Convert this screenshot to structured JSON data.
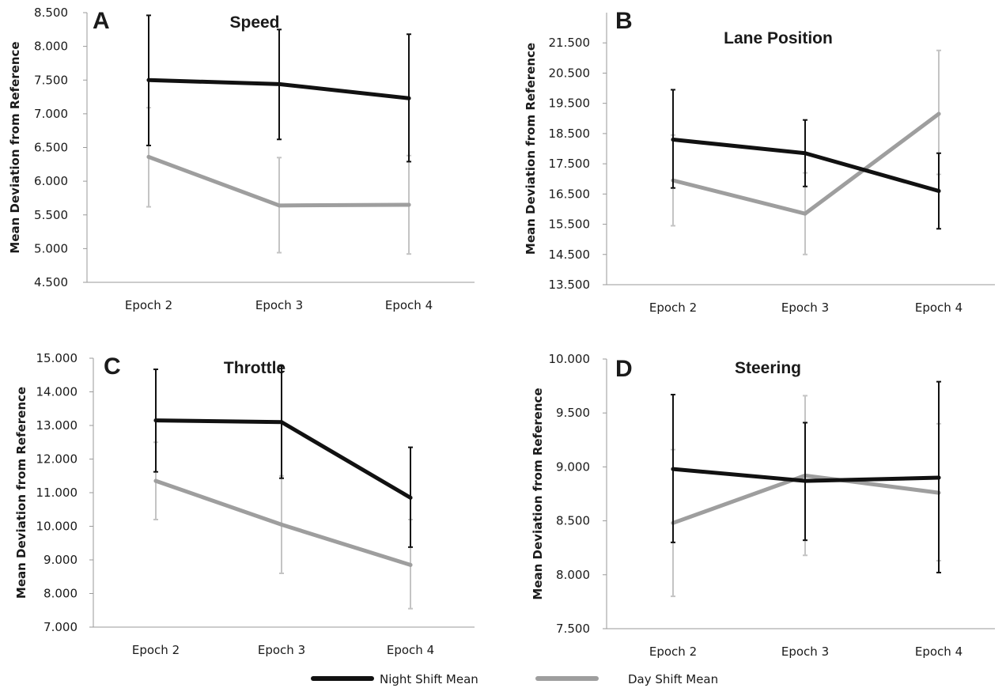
{
  "chart_data": [
    {
      "type": "line",
      "panel": "A",
      "title": "Speed",
      "ylabel": "Mean Deviation from Reference",
      "xlabel": "",
      "categories": [
        "Epoch 2",
        "Epoch 3",
        "Epoch 4"
      ],
      "ylim": [
        4.5,
        8.5
      ],
      "yticks": [
        "8.500",
        "8.000",
        "7.500",
        "7.000",
        "6.500",
        "6.000",
        "5.500",
        "5.000",
        "4.500"
      ],
      "grid": false,
      "series": [
        {
          "name": "Night Shift Mean",
          "color": "#111111",
          "values": [
            7.5,
            7.44,
            7.23
          ],
          "err_low": [
            6.53,
            6.62,
            6.29
          ],
          "err_high": [
            8.46,
            8.25,
            8.18
          ]
        },
        {
          "name": "Day Shift Mean",
          "color": "#9e9e9e",
          "values": [
            6.36,
            5.64,
            5.65
          ],
          "err_low": [
            5.62,
            4.94,
            4.92
          ],
          "err_high": [
            7.09,
            6.35,
            6.38
          ]
        }
      ]
    },
    {
      "type": "line",
      "panel": "B",
      "title": "Lane Position",
      "ylabel": "Mean Deviation from Reference",
      "xlabel": "",
      "categories": [
        "Epoch 2",
        "Epoch 3",
        "Epoch 4"
      ],
      "ylim": [
        13.5,
        22.5
      ],
      "yticks": [
        "21.500",
        "20.500",
        "19.500",
        "18.500",
        "17.500",
        "16.500",
        "15.500",
        "14.500",
        "13.500"
      ],
      "grid": false,
      "series": [
        {
          "name": "Night Shift Mean",
          "color": "#111111",
          "values": [
            18.3,
            17.85,
            16.6
          ],
          "err_low": [
            16.7,
            16.75,
            15.35
          ],
          "err_high": [
            19.95,
            18.95,
            17.85
          ]
        },
        {
          "name": "Day Shift Mean",
          "color": "#9e9e9e",
          "values": [
            16.95,
            15.85,
            19.15
          ],
          "err_low": [
            15.45,
            14.5,
            17.15
          ],
          "err_high": [
            18.45,
            17.2,
            21.25
          ]
        }
      ]
    },
    {
      "type": "line",
      "panel": "C",
      "title": "Throttle",
      "ylabel": "Mean Deviation from Reference",
      "xlabel": "",
      "categories": [
        "Epoch 2",
        "Epoch 3",
        "Epoch 4"
      ],
      "ylim": [
        7.0,
        15.0
      ],
      "yticks": [
        "15.000",
        "14.000",
        "13.000",
        "12.000",
        "11.000",
        "10.000",
        "9.000",
        "8.000",
        "7.000"
      ],
      "grid": false,
      "series": [
        {
          "name": "Night Shift Mean",
          "color": "#111111",
          "values": [
            13.15,
            13.1,
            10.85
          ],
          "err_low": [
            11.62,
            11.43,
            9.38
          ],
          "err_high": [
            14.67,
            14.77,
            12.35
          ]
        },
        {
          "name": "Day Shift Mean",
          "color": "#9e9e9e",
          "values": [
            11.35,
            10.05,
            8.85
          ],
          "err_low": [
            10.2,
            8.6,
            7.55
          ],
          "err_high": [
            12.5,
            11.5,
            10.2
          ]
        }
      ]
    },
    {
      "type": "line",
      "panel": "D",
      "title": "Steering",
      "ylabel": "Mean Deviation from Reference",
      "xlabel": "",
      "categories": [
        "Epoch 2",
        "Epoch 3",
        "Epoch 4"
      ],
      "ylim": [
        7.5,
        10.0
      ],
      "yticks": [
        "10.000",
        "9.500",
        "9.000",
        "8.500",
        "8.000",
        "7.500"
      ],
      "grid": false,
      "series": [
        {
          "name": "Night Shift Mean",
          "color": "#111111",
          "values": [
            8.98,
            8.87,
            8.9
          ],
          "err_low": [
            8.3,
            8.32,
            8.02
          ],
          "err_high": [
            9.67,
            9.41,
            9.79
          ]
        },
        {
          "name": "Day Shift Mean",
          "color": "#9e9e9e",
          "values": [
            8.48,
            8.92,
            8.76
          ],
          "err_low": [
            7.8,
            8.18,
            8.13
          ],
          "err_high": [
            9.16,
            9.66,
            9.4
          ]
        }
      ]
    }
  ],
  "legend": {
    "night_label": "Night Shift Mean",
    "day_label": "Day Shift Mean",
    "night_color": "#111111",
    "day_color": "#9e9e9e"
  }
}
